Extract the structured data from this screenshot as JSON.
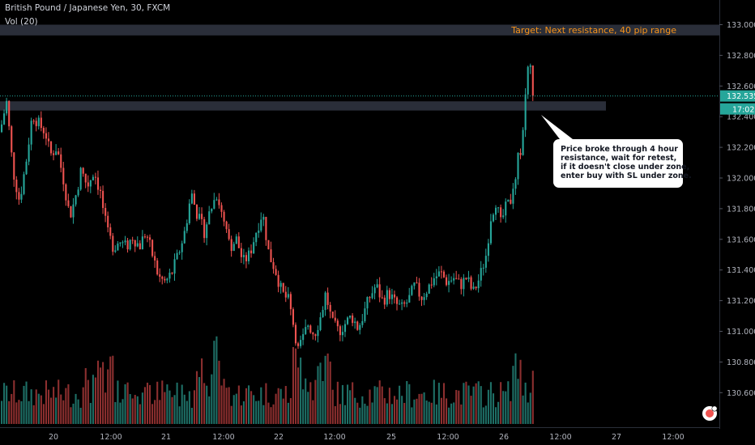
{
  "header": {
    "symbol_title": "British Pound / Japanese Yen, 30, FXCM",
    "volume_label": "Vol (20)"
  },
  "price_badge": {
    "value": "132.535",
    "countdown": "17:02"
  },
  "annotations": {
    "target": "Target: Next resistance, 40 pip range",
    "callout_lines": [
      "Price broke through 4 hour",
      "resistance, wait for retest,",
      "if it doesn't close under zone,",
      "enter buy with SL under zone."
    ]
  },
  "colors": {
    "background": "#000000",
    "up": "#26a69a",
    "down": "#ef5350",
    "vol_up": "#1e6f66",
    "vol_down": "#8c2f2f",
    "zone": "#2a2e39",
    "accent": "#f7931a",
    "price_line": "#26a69a"
  },
  "chart_data": {
    "type": "candlestick",
    "title": "British Pound / Japanese Yen, 30, FXCM",
    "y_axis": {
      "ticks": [
        "133.000",
        "132.800",
        "132.600",
        "132.400",
        "132.200",
        "132.000",
        "131.800",
        "131.600",
        "131.400",
        "131.200",
        "131.000",
        "130.800",
        "130.600"
      ],
      "range": [
        130.5,
        133.05
      ]
    },
    "x_axis": {
      "ticks": [
        "20",
        "12:00",
        "21",
        "12:00",
        "22",
        "12:00",
        "25",
        "12:00",
        "26",
        "12:00",
        "27",
        "12:00"
      ]
    },
    "current_price": 132.535,
    "zones": [
      {
        "name": "resistance-zone",
        "low": 132.44,
        "high": 132.5
      },
      {
        "name": "target-zone",
        "low": 132.93,
        "high": 133.0
      }
    ],
    "price_path": [
      [
        0,
        132.3
      ],
      [
        8,
        132.5
      ],
      [
        16,
        132.05
      ],
      [
        24,
        131.85
      ],
      [
        32,
        132.1
      ],
      [
        40,
        132.42
      ],
      [
        48,
        132.35
      ],
      [
        56,
        132.3
      ],
      [
        62,
        132.15
      ],
      [
        70,
        132.2
      ],
      [
        78,
        132.0
      ],
      [
        86,
        131.75
      ],
      [
        92,
        131.85
      ],
      [
        100,
        132.05
      ],
      [
        108,
        131.95
      ],
      [
        116,
        132.05
      ],
      [
        124,
        131.9
      ],
      [
        132,
        131.65
      ],
      [
        140,
        131.55
      ],
      [
        148,
        131.58
      ],
      [
        156,
        131.55
      ],
      [
        164,
        131.62
      ],
      [
        172,
        131.55
      ],
      [
        180,
        131.65
      ],
      [
        188,
        131.5
      ],
      [
        196,
        131.35
      ],
      [
        204,
        131.32
      ],
      [
        212,
        131.38
      ],
      [
        220,
        131.5
      ],
      [
        228,
        131.65
      ],
      [
        236,
        131.9
      ],
      [
        244,
        131.75
      ],
      [
        252,
        131.65
      ],
      [
        260,
        131.8
      ],
      [
        268,
        131.9
      ],
      [
        276,
        131.7
      ],
      [
        284,
        131.55
      ],
      [
        292,
        131.6
      ],
      [
        300,
        131.45
      ],
      [
        308,
        131.5
      ],
      [
        316,
        131.65
      ],
      [
        324,
        131.78
      ],
      [
        332,
        131.5
      ],
      [
        340,
        131.4
      ],
      [
        348,
        131.25
      ],
      [
        356,
        131.2
      ],
      [
        362,
        131.05
      ],
      [
        368,
        130.88
      ],
      [
        374,
        130.95
      ],
      [
        380,
        131.05
      ],
      [
        388,
        130.98
      ],
      [
        396,
        131.1
      ],
      [
        402,
        131.25
      ],
      [
        410,
        131.05
      ],
      [
        418,
        131.0
      ],
      [
        426,
        131.05
      ],
      [
        434,
        131.1
      ],
      [
        442,
        131.02
      ],
      [
        448,
        131.1
      ],
      [
        456,
        131.22
      ],
      [
        464,
        131.3
      ],
      [
        472,
        131.2
      ],
      [
        480,
        131.25
      ],
      [
        488,
        131.18
      ],
      [
        496,
        131.15
      ],
      [
        504,
        131.2
      ],
      [
        512,
        131.3
      ],
      [
        520,
        131.22
      ],
      [
        528,
        131.28
      ],
      [
        536,
        131.35
      ],
      [
        544,
        131.38
      ],
      [
        552,
        131.32
      ],
      [
        560,
        131.35
      ],
      [
        568,
        131.3
      ],
      [
        576,
        131.35
      ],
      [
        584,
        131.25
      ],
      [
        592,
        131.35
      ],
      [
        600,
        131.5
      ],
      [
        606,
        131.75
      ],
      [
        612,
        131.85
      ],
      [
        618,
        131.7
      ],
      [
        624,
        131.8
      ],
      [
        630,
        131.85
      ],
      [
        636,
        131.95
      ],
      [
        640,
        132.15
      ],
      [
        644,
        132.2
      ],
      [
        648,
        132.5
      ],
      [
        652,
        132.75
      ],
      [
        655,
        132.7
      ],
      [
        658,
        132.55
      ],
      [
        660,
        132.5
      ]
    ]
  }
}
